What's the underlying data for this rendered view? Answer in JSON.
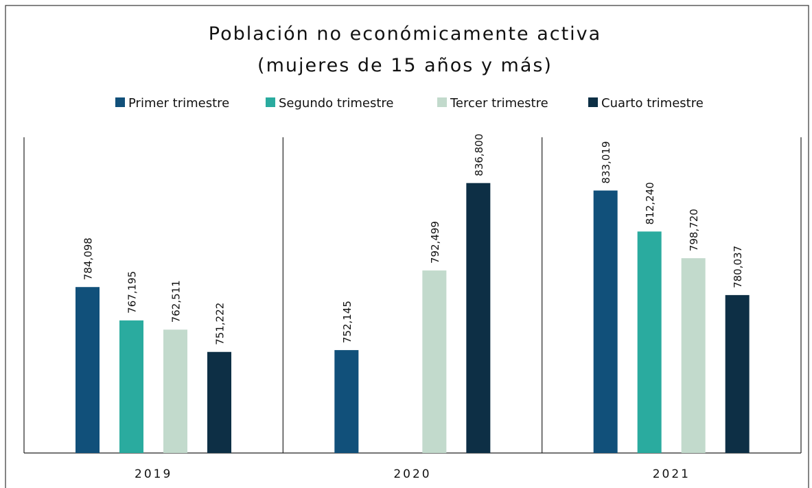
{
  "chart_data": {
    "type": "bar",
    "title": "Población no económicamente activa",
    "subtitle": "(mujeres de 15 años y más)",
    "categories": [
      "2019",
      "2020",
      "2021"
    ],
    "series": [
      {
        "name": "Primer trimestre",
        "color": "#11507a",
        "values": [
          784098,
          752145,
          833019
        ],
        "value_labels": [
          "784,098",
          "752,145",
          "833,019"
        ]
      },
      {
        "name": "Segundo trimestre",
        "color": "#2aab9f",
        "values": [
          767195,
          null,
          812240
        ],
        "value_labels": [
          "767,195",
          null,
          "812,240"
        ]
      },
      {
        "name": "Tercer trimestre",
        "color": "#c2dacc",
        "values": [
          762511,
          792499,
          798720
        ],
        "value_labels": [
          "762,511",
          "792,499",
          "798,720"
        ]
      },
      {
        "name": "Cuarto trimestre",
        "color": "#0d2f45",
        "values": [
          751222,
          836800,
          780037
        ],
        "value_labels": [
          "751,222",
          "836,800",
          "780,037"
        ]
      }
    ],
    "ylim": [
      700000,
      860000
    ],
    "legend": "top"
  }
}
